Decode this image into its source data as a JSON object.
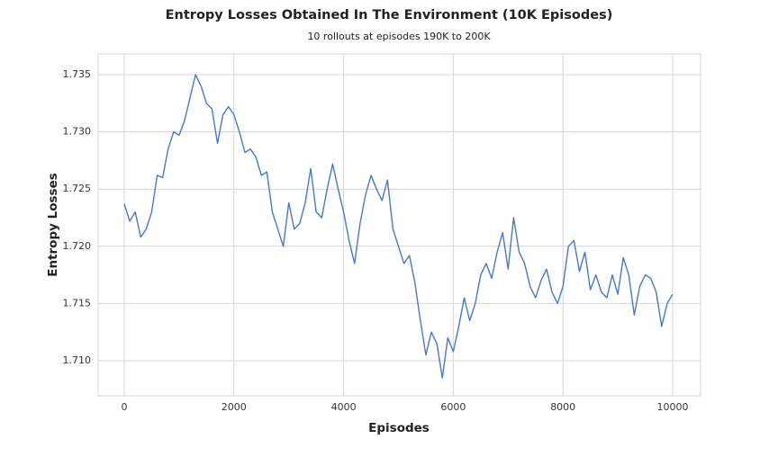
{
  "chart_data": {
    "type": "line",
    "title": "Entropy Losses Obtained In The Environment (10K Episodes)",
    "subtitle": "10 rollouts at episodes 190K to 200K",
    "x_label": "Episodes",
    "y_label": "Entropy Losses",
    "x": [
      0,
      100,
      200,
      300,
      400,
      500,
      600,
      700,
      800,
      900,
      1000,
      1100,
      1200,
      1300,
      1400,
      1500,
      1600,
      1700,
      1800,
      1900,
      2000,
      2100,
      2200,
      2300,
      2400,
      2500,
      2600,
      2700,
      2800,
      2900,
      3000,
      3100,
      3200,
      3300,
      3400,
      3500,
      3600,
      3700,
      3800,
      3900,
      4000,
      4100,
      4200,
      4300,
      4400,
      4500,
      4600,
      4700,
      4800,
      4900,
      5000,
      5100,
      5200,
      5300,
      5400,
      5500,
      5600,
      5700,
      5800,
      5900,
      6000,
      6100,
      6200,
      6300,
      6400,
      6500,
      6600,
      6700,
      6800,
      6900,
      7000,
      7100,
      7200,
      7300,
      7400,
      7500,
      7600,
      7700,
      7800,
      7900,
      8000,
      8100,
      8200,
      8300,
      8400,
      8500,
      8600,
      8700,
      8800,
      8900,
      9000,
      9100,
      9200,
      9300,
      9400,
      9500,
      9600,
      9700,
      9800,
      9900,
      10000
    ],
    "series": [
      {
        "name": "Entropy Losses",
        "color": "#4a78c9",
        "values": [
          1.7237,
          1.7222,
          1.723,
          1.7208,
          1.7215,
          1.723,
          1.7262,
          1.726,
          1.7285,
          1.73,
          1.7297,
          1.731,
          1.733,
          1.735,
          1.734,
          1.7325,
          1.732,
          1.729,
          1.7315,
          1.7322,
          1.7315,
          1.73,
          1.7282,
          1.7285,
          1.7278,
          1.7262,
          1.7265,
          1.723,
          1.7215,
          1.72,
          1.7238,
          1.7215,
          1.722,
          1.7238,
          1.7268,
          1.723,
          1.7225,
          1.725,
          1.7272,
          1.725,
          1.723,
          1.7205,
          1.7185,
          1.722,
          1.7245,
          1.7262,
          1.725,
          1.724,
          1.7258,
          1.7215,
          1.72,
          1.7185,
          1.7192,
          1.7168,
          1.7135,
          1.7105,
          1.7125,
          1.7115,
          1.7085,
          1.712,
          1.7108,
          1.713,
          1.7155,
          1.7135,
          1.715,
          1.7175,
          1.7185,
          1.7172,
          1.7195,
          1.7212,
          1.718,
          1.7225,
          1.7195,
          1.7185,
          1.7165,
          1.7155,
          1.717,
          1.718,
          1.716,
          1.715,
          1.7165,
          1.72,
          1.7205,
          1.7178,
          1.7195,
          1.7162,
          1.7175,
          1.716,
          1.7155,
          1.7175,
          1.7158,
          1.719,
          1.7175,
          1.714,
          1.7165,
          1.7175,
          1.7172,
          1.716,
          1.713,
          1.715,
          1.7158
        ]
      }
    ],
    "xlim": [
      -476,
      10509
    ],
    "ylim": [
      1.70693,
      1.73681
    ],
    "xticks": [
      0,
      2000,
      4000,
      6000,
      8000,
      10000
    ],
    "yticks": [
      {
        "value": 1.71,
        "label": "1.710"
      },
      1.715,
      {
        "value": 1.72,
        "label": "1.720"
      },
      1.725,
      {
        "value": 1.73,
        "label": "1.730"
      },
      1.735
    ],
    "grid": true
  }
}
